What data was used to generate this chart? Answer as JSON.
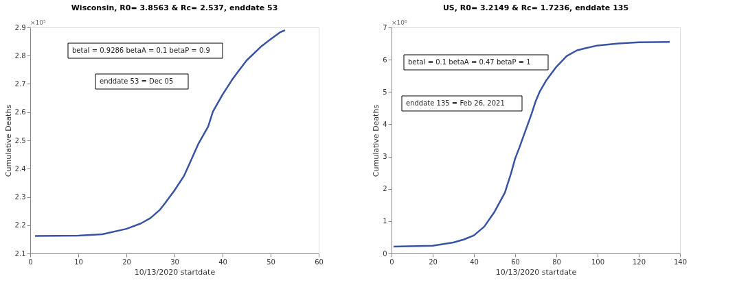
{
  "chart_data": [
    {
      "type": "line",
      "title": "Wisconsin, R0=  3.8563 & Rc= 2.537, enddate 53",
      "xlabel": "10/13/2020 startdate",
      "ylabel": "Cumulative Deaths",
      "x": [
        1,
        10,
        15,
        20,
        23,
        25,
        27,
        28,
        30,
        32,
        33,
        35,
        37,
        38,
        40,
        42,
        43,
        45,
        48,
        50,
        52,
        53
      ],
      "series": [
        {
          "color": "#3953a4",
          "values": [
            2.162,
            2.163,
            2.168,
            2.187,
            2.206,
            2.225,
            2.255,
            2.277,
            2.323,
            2.375,
            2.413,
            2.489,
            2.549,
            2.602,
            2.662,
            2.715,
            2.738,
            2.783,
            2.832,
            2.858,
            2.883,
            2.89
          ]
        }
      ],
      "xlim": [
        0,
        60
      ],
      "xticks": [
        0,
        10,
        20,
        30,
        40,
        50,
        60
      ],
      "ylim": [
        2.1,
        2.9
      ],
      "yticks": [
        2.1,
        2.2,
        2.3,
        2.4,
        2.5,
        2.6,
        2.7,
        2.8,
        2.9
      ],
      "annotations": [
        "×10⁵",
        "betaI = 0.9286 betaA = 0.1 betaP = 0.9",
        "enddate 53 = Dec 05"
      ],
      "grid": false,
      "line_style": "solid",
      "marker": "none"
    },
    {
      "type": "line",
      "title": "US, R0=  3.2149 & Rc= 1.7236, enddate 135",
      "xlabel": "10/13/2020 startdate",
      "ylabel": "Cumulative Deaths",
      "x": [
        1,
        20,
        30,
        35,
        40,
        45,
        50,
        55,
        58,
        60,
        62,
        65,
        68,
        70,
        72,
        75,
        80,
        85,
        90,
        95,
        100,
        110,
        120,
        135
      ],
      "series": [
        {
          "color": "#3953a4",
          "values": [
            0.21,
            0.24,
            0.34,
            0.43,
            0.56,
            0.83,
            1.29,
            1.88,
            2.48,
            2.94,
            3.27,
            3.8,
            4.33,
            4.72,
            5.02,
            5.35,
            5.78,
            6.11,
            6.29,
            6.37,
            6.44,
            6.5,
            6.54,
            6.55
          ]
        }
      ],
      "xlim": [
        0,
        140
      ],
      "xticks": [
        0,
        20,
        40,
        60,
        80,
        100,
        120,
        140
      ],
      "ylim": [
        0,
        7
      ],
      "yticks": [
        0,
        1,
        2,
        3,
        4,
        5,
        6,
        7
      ],
      "annotations": [
        "×10⁶",
        "betaI = 0.1 betaA = 0.47 betaP = 1",
        "enddate 135 = Feb 26, 2021"
      ],
      "grid": false,
      "line_style": "solid",
      "marker": "none"
    }
  ]
}
